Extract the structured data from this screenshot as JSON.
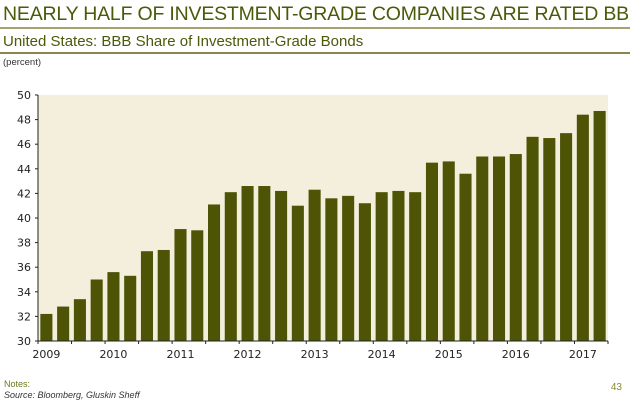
{
  "title": "NEARLY HALF OF INVESTMENT-GRADE COMPANIES ARE RATED BBB",
  "subtitle": "United States: BBB Share of Investment-Grade Bonds",
  "unit_label": "(percent)",
  "notes_label": "Notes:",
  "source": "Source: Bloomberg, Gluskin Sheff",
  "page_number": "43",
  "colors": {
    "bar": "#4d5405",
    "plot_bg": "#f4eedc",
    "title": "#4a5a0a"
  },
  "chart_data": {
    "type": "bar",
    "title": "United States: BBB Share of Investment-Grade Bonds",
    "ylabel": "(percent)",
    "ylim": [
      30,
      50
    ],
    "yticks": [
      30,
      32,
      34,
      36,
      38,
      40,
      42,
      44,
      46,
      48,
      50
    ],
    "xtick_labels": [
      "2009",
      "2010",
      "2011",
      "2012",
      "2013",
      "2014",
      "2015",
      "2016",
      "2017"
    ],
    "bars_per_year": 4,
    "grid": false,
    "values": [
      32.2,
      32.8,
      33.4,
      35.0,
      35.6,
      35.3,
      37.3,
      37.4,
      39.1,
      39.0,
      41.1,
      42.1,
      42.6,
      42.6,
      42.2,
      41.0,
      42.3,
      41.6,
      41.8,
      41.2,
      42.1,
      42.2,
      42.1,
      44.5,
      44.6,
      43.6,
      45.0,
      45.0,
      45.2,
      46.6,
      46.5,
      46.9,
      48.4,
      48.7
    ]
  }
}
